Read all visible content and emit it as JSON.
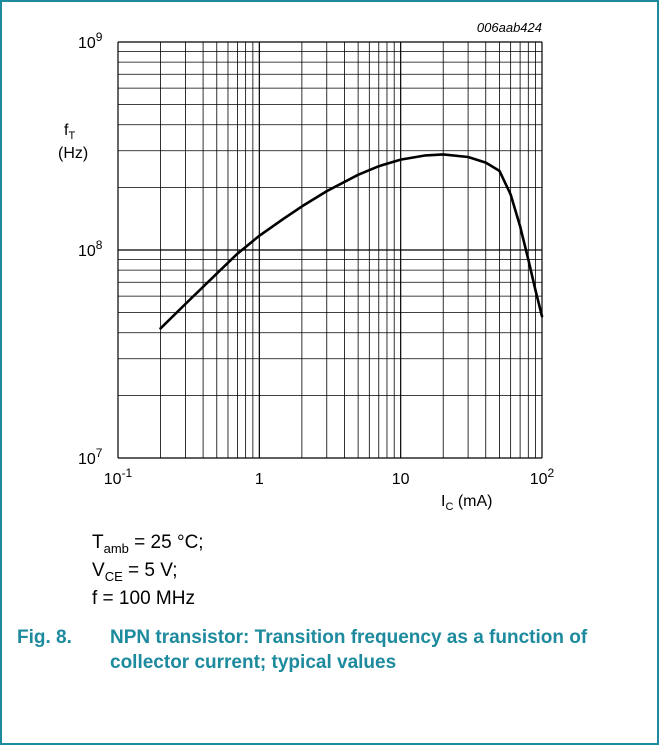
{
  "figure_code": "006aab424",
  "chart_data": {
    "type": "line",
    "x_scale": "log",
    "y_scale": "log",
    "xlim": [
      0.1,
      100
    ],
    "ylim": [
      10000000,
      1000000000
    ],
    "y_tick_labels": [
      {
        "value": 10000000,
        "base": "10",
        "exp": "7"
      },
      {
        "value": 100000000,
        "base": "10",
        "exp": "8"
      },
      {
        "value": 1000000000,
        "base": "10",
        "exp": "9"
      }
    ],
    "x_tick_labels": [
      {
        "value": 0.1,
        "base": "10",
        "exp": "-1"
      },
      {
        "value": 1,
        "base": "1",
        "exp": ""
      },
      {
        "value": 10,
        "base": "10",
        "exp": ""
      },
      {
        "value": 100,
        "base": "10",
        "exp": "2"
      }
    ],
    "ylabel": {
      "symbol": "f",
      "sub": "T",
      "unit": "(Hz)"
    },
    "xlabel": {
      "symbol": "I",
      "sub": "C",
      "unit": "(mA)"
    },
    "series": [
      {
        "x": [
          0.2,
          0.3,
          0.5,
          0.7,
          1,
          1.5,
          2,
          3,
          5,
          7,
          10,
          15,
          20,
          30,
          40,
          50,
          60,
          70,
          80,
          90,
          100
        ],
        "y": [
          42000000,
          55000000,
          77000000,
          96000000,
          117000000,
          142000000,
          162000000,
          192000000,
          230000000,
          253000000,
          272000000,
          285000000,
          288000000,
          280000000,
          263000000,
          240000000,
          185000000,
          130000000,
          90000000,
          64000000,
          48000000
        ]
      }
    ]
  },
  "conditions": {
    "tamb_sym": "T",
    "tamb_sub": "amb",
    "tamb_rest": " = 25 °C;",
    "vce_sym": "V",
    "vce_sub": "CE",
    "vce_rest": " = 5 V;",
    "f_line": "f = 100 MHz"
  },
  "caption": {
    "number": "Fig. 8.",
    "text": "NPN transistor: Transition frequency as a function of collector current; typical values"
  }
}
